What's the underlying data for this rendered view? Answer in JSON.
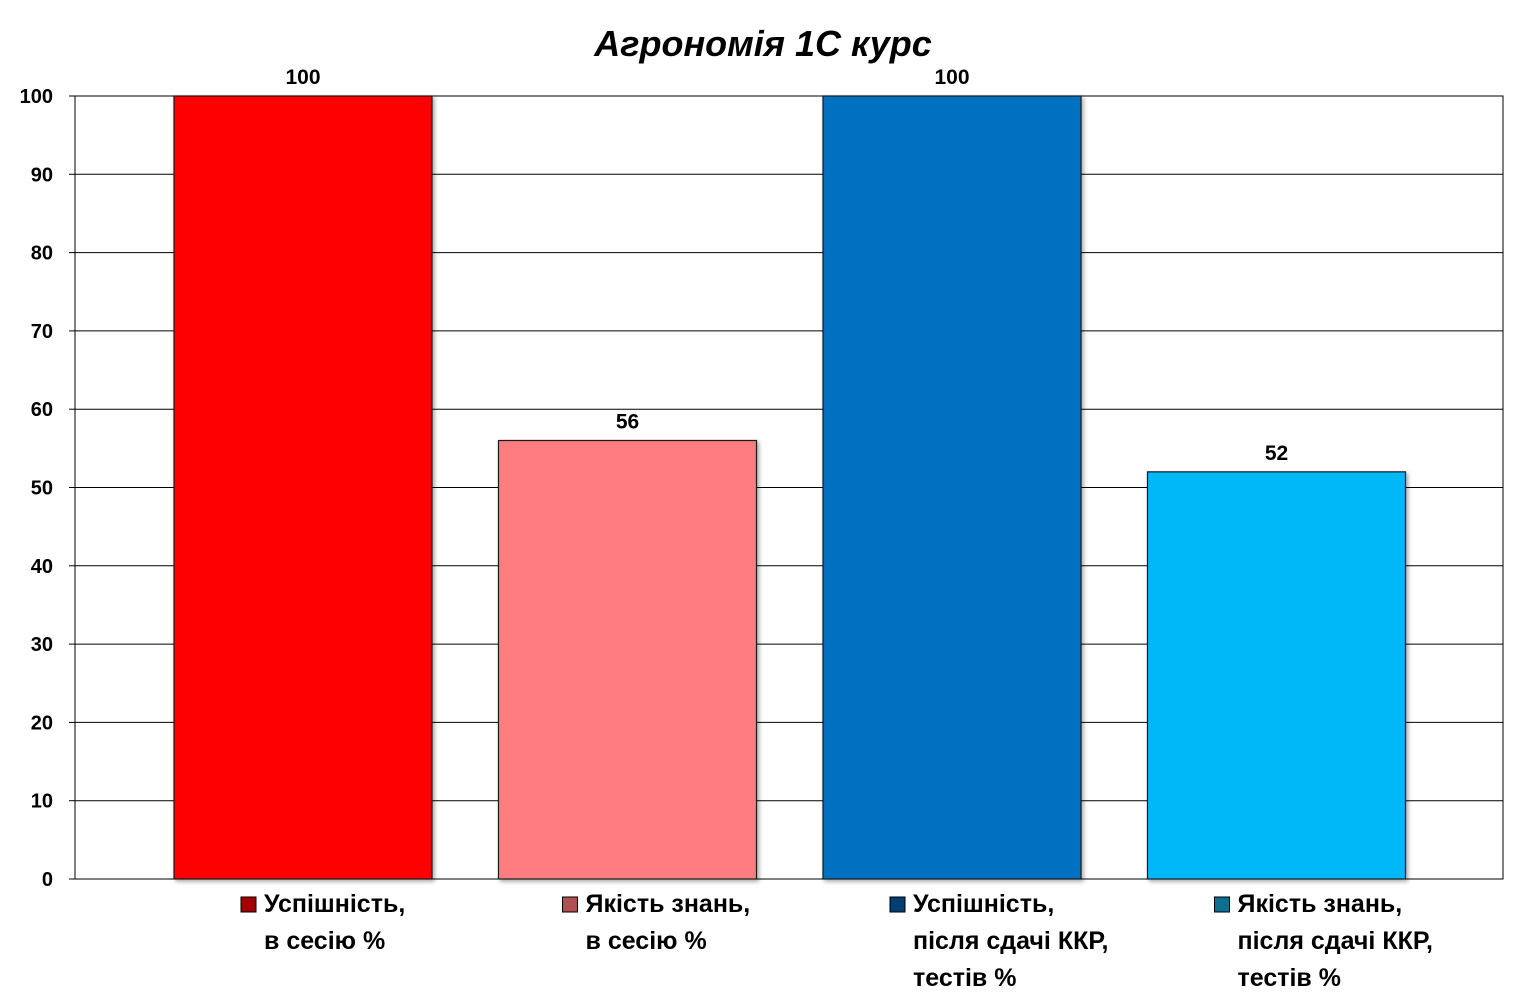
{
  "chart_data": {
    "type": "bar",
    "title": "Агрономія 1С курс",
    "categories": [
      [
        "Успішність,",
        "в сесію %"
      ],
      [
        "Якість знань,",
        "в сесію %"
      ],
      [
        "Успішність,",
        "після сдачі ККР,",
        "тестів %"
      ],
      [
        "Якість знань,",
        "після сдачі ККР,",
        "тестів %"
      ]
    ],
    "values": [
      100,
      56,
      100,
      52
    ],
    "data_labels": [
      "100",
      "56",
      "100",
      "52"
    ],
    "colors": [
      "#ff0000",
      "#ff7c80",
      "#0070c0",
      "#00b8f8"
    ],
    "legend_swatch_colors": [
      "#a50000",
      "#b05050",
      "#003f73",
      "#0f6f8f"
    ],
    "ylim": [
      0,
      100
    ],
    "yticks": [
      "0",
      "10",
      "20",
      "30",
      "40",
      "50",
      "60",
      "70",
      "80",
      "90",
      "100"
    ],
    "grid": true,
    "legend_position": "bottom"
  }
}
